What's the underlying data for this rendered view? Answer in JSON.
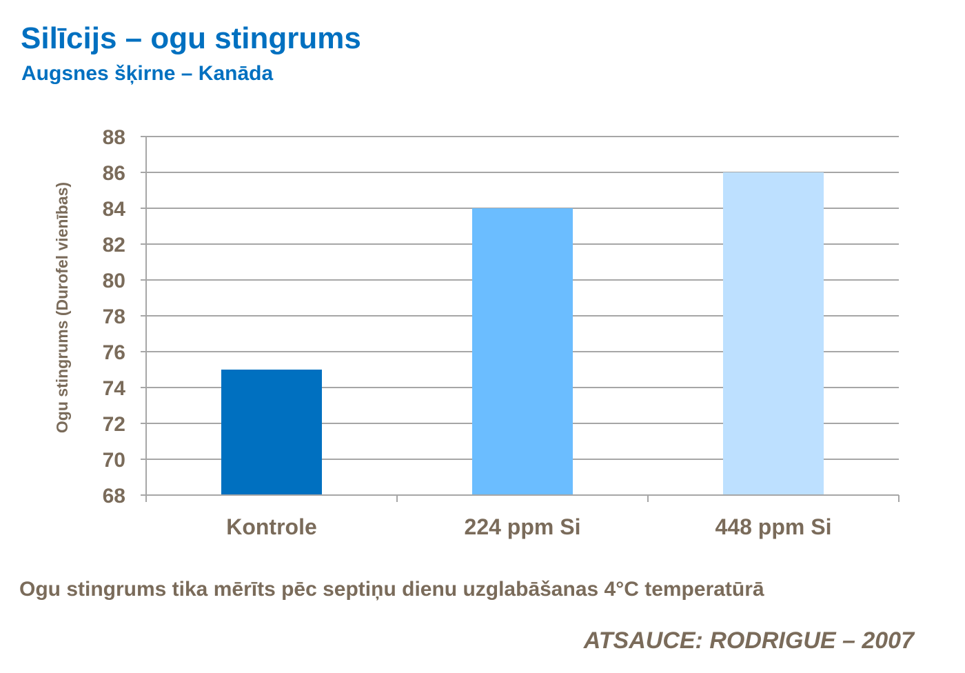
{
  "header": {
    "title": "Silīcijs – ogu stingrums",
    "subtitle": "Augsnes šķirne – Kanāda"
  },
  "chart_data": {
    "type": "bar",
    "categories": [
      "Kontrole",
      "224 ppm Si",
      "448 ppm Si"
    ],
    "values": [
      75,
      84,
      86
    ],
    "bar_colors": [
      "#0070c0",
      "#6bbdff",
      "#bde0ff"
    ],
    "ylabel": "Ogu stingrums (Durofel vienības)",
    "xlabel": "",
    "ylim": [
      68,
      88
    ],
    "yticks": [
      68,
      70,
      72,
      74,
      76,
      78,
      80,
      82,
      84,
      86,
      88
    ],
    "grid": true
  },
  "footer": {
    "note": "Ogu stingrums tika mērīts pēc septiņu dienu uzglabāšanas 4°C temperatūrā",
    "source": "ATSAUCE: RODRIGUE – 2007"
  },
  "colors": {
    "accent": "#0070c0",
    "text": "#7a6b5a",
    "grid": "#a6a6a6"
  }
}
